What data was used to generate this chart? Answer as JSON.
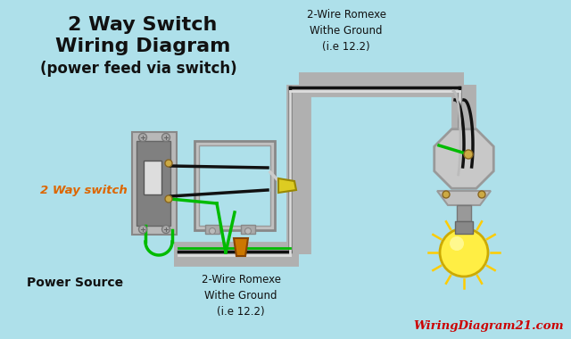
{
  "bg_color": "#aee0ea",
  "title_line1": "2 Way Switch",
  "title_line2": "Wiring Diagram",
  "title_line3": "(power feed via switch)",
  "label_switch": "2 Way switch",
  "label_power": "Power Source",
  "label_top_wire": "2-Wire Romexe\nWithe Ground\n(i.e 12.2)",
  "label_bot_wire": "2-Wire Romexe\nWithe Ground\n(i.e 12.2)",
  "watermark": "WiringDiagram21.com",
  "conduit_color": "#b0b0b0",
  "wire_black": "#111111",
  "wire_green": "#00bb00",
  "wire_white": "#dddddd",
  "switch_body_color": "#888888",
  "box_color": "#aaaaaa",
  "title_color": "#111111",
  "label_switch_color": "#dd6600",
  "label_power_color": "#111111",
  "watermark_color_red": "#cc0000"
}
